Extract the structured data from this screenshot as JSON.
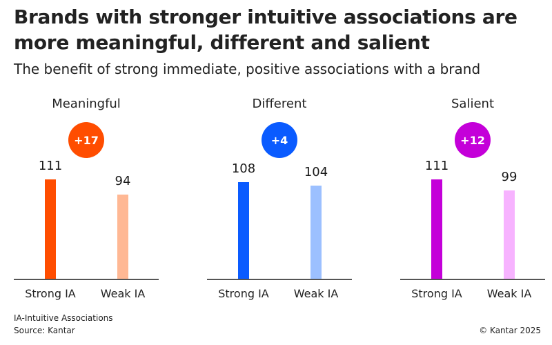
{
  "title": "Brands with stronger intuitive associations are more meaningful, different and salient",
  "subtitle": "The benefit of strong immediate, positive associations with a brand",
  "footnote": "IA-Intuitive Associations",
  "source": "Source: Kantar",
  "copyright": "© Kantar 2025",
  "chart_data": [
    {
      "type": "bar",
      "title": "Meaningful",
      "badge": "+17",
      "categories": [
        "Strong IA",
        "Weak IA"
      ],
      "values": [
        111,
        94
      ],
      "value_labels": [
        "111",
        "94"
      ],
      "colors": [
        "#ff4d00",
        "#ffb894"
      ],
      "badge_color": "#ff4d00",
      "ylim": [
        0,
        111
      ]
    },
    {
      "type": "bar",
      "title": "Different",
      "badge": "+4",
      "categories": [
        "Strong IA",
        "Weak IA"
      ],
      "values": [
        108,
        104
      ],
      "value_labels": [
        "108",
        "104"
      ],
      "colors": [
        "#0a5bff",
        "#9cc0ff"
      ],
      "badge_color": "#0a5bff",
      "ylim": [
        0,
        111
      ]
    },
    {
      "type": "bar",
      "title": "Salient",
      "badge": "+12",
      "categories": [
        "Strong IA",
        "Weak IA"
      ],
      "values": [
        111,
        99
      ],
      "value_labels": [
        "111",
        "99"
      ],
      "colors": [
        "#c400d9",
        "#f7b3ff"
      ],
      "badge_color": "#c400d9",
      "ylim": [
        0,
        111
      ]
    }
  ]
}
